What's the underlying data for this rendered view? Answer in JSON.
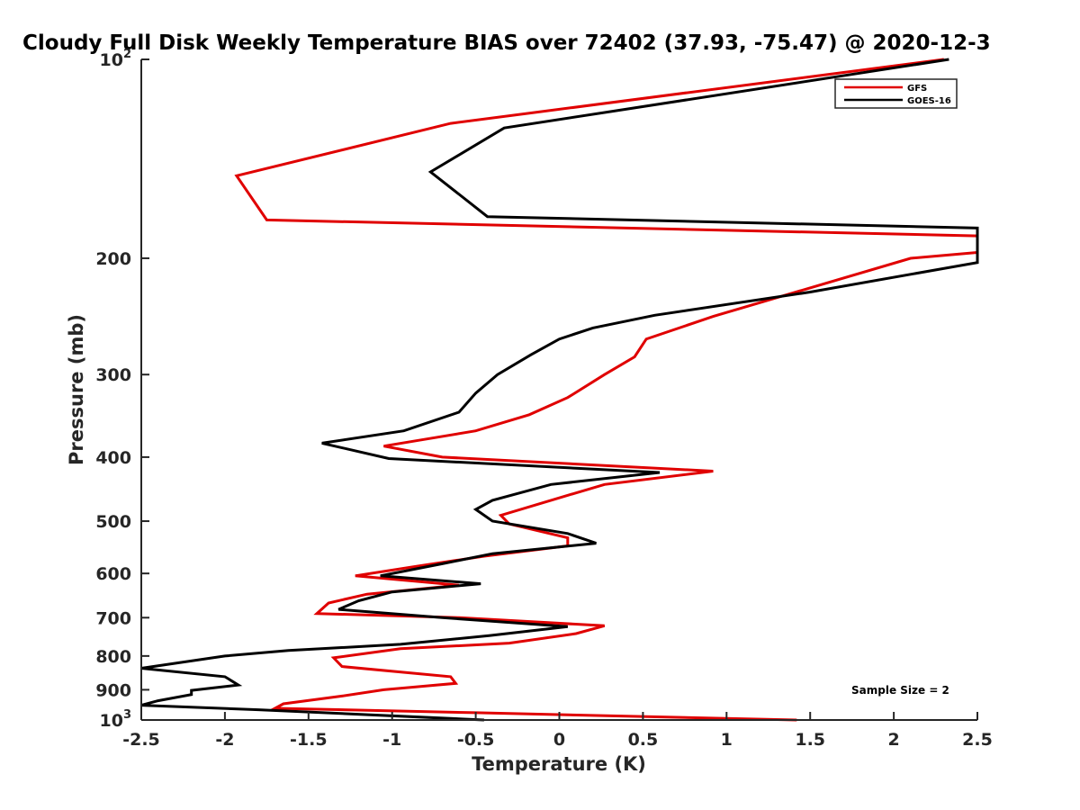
{
  "chart_data": {
    "type": "line",
    "title": "Cloudy Full Disk Weekly Temperature BIAS over 72402 (37.93, -75.47) @ 2020-12-3",
    "xlabel": "Temperature (K)",
    "ylabel": "Pressure (mb)",
    "xlim": [
      -2.5,
      2.5
    ],
    "ylim": [
      100,
      1000
    ],
    "y_scale": "log",
    "y_reversed": true,
    "x_ticks": [
      -2.5,
      -2,
      -1.5,
      -1,
      -0.5,
      0,
      0.5,
      1,
      1.5,
      2,
      2.5
    ],
    "x_tick_labels": [
      "-2.5",
      "-2",
      "-1.5",
      "-1",
      "-0.5",
      "0",
      "0.5",
      "1",
      "1.5",
      "2",
      "2.5"
    ],
    "y_ticks": [
      100,
      200,
      300,
      400,
      500,
      600,
      700,
      800,
      900,
      1000
    ],
    "y_tick_labels": [
      {
        "base": "10",
        "exp": "2"
      },
      {
        "text": "200"
      },
      {
        "text": "300"
      },
      {
        "text": "400"
      },
      {
        "text": "500"
      },
      {
        "text": "600"
      },
      {
        "text": "700"
      },
      {
        "text": "800"
      },
      {
        "text": "900"
      },
      {
        "base": "10",
        "exp": "3"
      }
    ],
    "grid": false,
    "legend_position": "top-right",
    "annotation": "Sample Size = 2",
    "series": [
      {
        "name": "GFS",
        "color": "#e00000",
        "points": [
          [
            2.3,
            100
          ],
          [
            -0.65,
            125
          ],
          [
            -1.93,
            150
          ],
          [
            -1.75,
            175
          ],
          [
            2.5,
            185
          ],
          [
            2.5,
            196
          ],
          [
            2.1,
            200
          ],
          [
            0.92,
            245
          ],
          [
            0.52,
            265
          ],
          [
            0.45,
            282
          ],
          [
            0.27,
            300
          ],
          [
            0.05,
            325
          ],
          [
            -0.18,
            345
          ],
          [
            -0.5,
            365
          ],
          [
            -1.05,
            385
          ],
          [
            -0.7,
            400
          ],
          [
            0.92,
            420
          ],
          [
            0.27,
            440
          ],
          [
            -0.05,
            465
          ],
          [
            -0.35,
            490
          ],
          [
            -0.3,
            505
          ],
          [
            0.05,
            530
          ],
          [
            0.05,
            545
          ],
          [
            -0.45,
            565
          ],
          [
            -0.85,
            585
          ],
          [
            -1.22,
            605
          ],
          [
            -0.6,
            625
          ],
          [
            -1.15,
            645
          ],
          [
            -1.38,
            665
          ],
          [
            -1.45,
            690
          ],
          [
            -0.6,
            700
          ],
          [
            0.27,
            720
          ],
          [
            0.1,
            740
          ],
          [
            -0.3,
            765
          ],
          [
            -0.95,
            780
          ],
          [
            -1.35,
            805
          ],
          [
            -1.3,
            830
          ],
          [
            -0.65,
            860
          ],
          [
            -0.62,
            880
          ],
          [
            -1.05,
            900
          ],
          [
            -1.3,
            920
          ],
          [
            -1.65,
            945
          ],
          [
            -1.7,
            960
          ],
          [
            -0.5,
            975
          ],
          [
            1.42,
            1000
          ]
        ]
      },
      {
        "name": "GOES-16",
        "color": "#000000",
        "points": [
          [
            2.33,
            100
          ],
          [
            -0.33,
            127
          ],
          [
            -0.77,
            148
          ],
          [
            -0.43,
            173
          ],
          [
            2.5,
            180
          ],
          [
            2.5,
            203
          ],
          [
            1.5,
            225
          ],
          [
            0.57,
            244
          ],
          [
            0.2,
            255
          ],
          [
            0,
            265
          ],
          [
            -0.17,
            280
          ],
          [
            -0.37,
            300
          ],
          [
            -0.5,
            320
          ],
          [
            -0.6,
            342
          ],
          [
            -0.93,
            365
          ],
          [
            -1.42,
            381
          ],
          [
            -1.02,
            402
          ],
          [
            0.6,
            422
          ],
          [
            -0.05,
            440
          ],
          [
            -0.4,
            465
          ],
          [
            -0.5,
            480
          ],
          [
            -0.4,
            500
          ],
          [
            0.05,
            522
          ],
          [
            0.22,
            540
          ],
          [
            -0.4,
            560
          ],
          [
            -0.7,
            580
          ],
          [
            -1.07,
            605
          ],
          [
            -0.47,
            622
          ],
          [
            -1.0,
            640
          ],
          [
            -1.2,
            660
          ],
          [
            -1.32,
            680
          ],
          [
            -0.7,
            700
          ],
          [
            0.05,
            722
          ],
          [
            -0.42,
            745
          ],
          [
            -0.95,
            768
          ],
          [
            -1.62,
            785
          ],
          [
            -2.0,
            800
          ],
          [
            -2.5,
            835
          ],
          [
            -2.0,
            860
          ],
          [
            -1.92,
            885
          ],
          [
            -2.2,
            902
          ],
          [
            -2.2,
            915
          ],
          [
            -2.4,
            935
          ],
          [
            -2.5,
            950
          ],
          [
            -1.8,
            965
          ],
          [
            -0.45,
            1000
          ]
        ]
      }
    ]
  }
}
